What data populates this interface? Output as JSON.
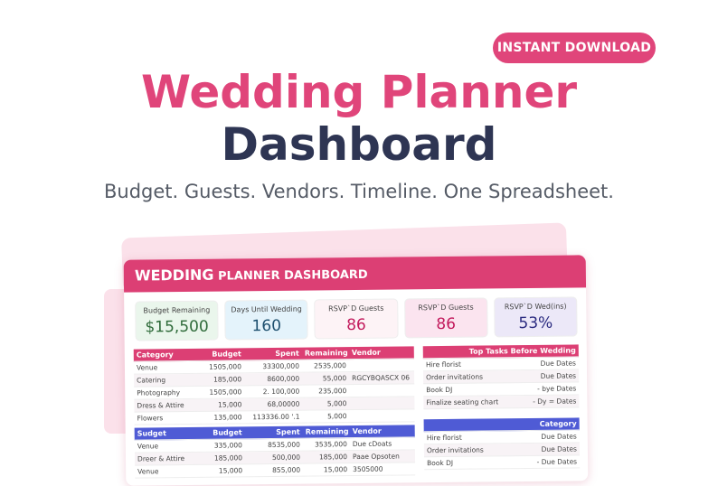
{
  "cta": "INSTANT DOWNLOAD",
  "title_line1": "Wedding Planner",
  "title_line2": "Dashboard",
  "subtitle": "Budget. Guests. Vendors. Timeline. One Spreadsheet.",
  "colors": {
    "accent": "#e0457a",
    "navy": "#2e3553",
    "blue_header": "#4f5bd5"
  },
  "sheet": {
    "header_bold": "WEDDING",
    "header_rest": "PLANNER DASHBOARD",
    "kpis": [
      {
        "label": "Budget Remaining",
        "value": "$15,500",
        "bg": "#eaf6ec",
        "color": "#2f6b3a"
      },
      {
        "label": "Days Until Wedding",
        "value": "160",
        "bg": "#e4f3fb",
        "color": "#1d4f6e"
      },
      {
        "label": "RSVP`D Guests",
        "value": "86",
        "bg": "#fdf3f6",
        "color": "#c2185b"
      },
      {
        "label": "RSVP`D Guests",
        "value": "86",
        "bg": "#fbe4ef",
        "color": "#c2185b"
      },
      {
        "label": "RSVP`D Wed(ins)",
        "value": "53%",
        "bg": "#ece8f8",
        "color": "#2a2a80"
      }
    ],
    "budget_table": {
      "headers": [
        "Category",
        "Budget",
        "Spent",
        "Remaining",
        "Vendor"
      ],
      "rows": [
        [
          "Venue",
          "1505,000",
          "33300,000",
          "2535,000",
          ""
        ],
        [
          "Catering",
          "185,000",
          "8600,000",
          "55,000",
          "RGCYBQASCX 06"
        ],
        [
          "Photography",
          "1505,000",
          "2. 100,000",
          "235,000",
          ""
        ],
        [
          "Dress & Attire",
          "15,000",
          "68,00000",
          "5,000",
          ""
        ],
        [
          "Flowers",
          "135,000",
          "113336.00 '.1",
          "5,000",
          ""
        ]
      ]
    },
    "budget_table2": {
      "headers": [
        "Sudget",
        "Budget",
        "Spent",
        "Remaining",
        "Vendor"
      ],
      "rows": [
        [
          "Venue",
          "335,000",
          "8535,000",
          "3535,000",
          "Due cDoats"
        ],
        [
          "Dreer & Attire",
          "185,000",
          "500,000",
          "185,000",
          "Paae Opsoten"
        ],
        [
          "Venue",
          "15,000",
          "855,000",
          "15,000",
          "3505000"
        ]
      ]
    },
    "tasks": {
      "header": "Top Tasks Before Wedding",
      "rows": [
        [
          "Hire florist",
          "Due Dates"
        ],
        [
          "Order invitations",
          "Due Dates"
        ],
        [
          "Book DJ",
          "- bye Dates"
        ],
        [
          "Finalize seating chart",
          "- Dy = Dates"
        ]
      ]
    },
    "tasks2": {
      "header": "Category",
      "rows": [
        [
          "Hire florist",
          "Due Dates"
        ],
        [
          "Order invitations",
          "Due Dates"
        ],
        [
          "Book DJ",
          "- Due Dates"
        ]
      ]
    }
  }
}
